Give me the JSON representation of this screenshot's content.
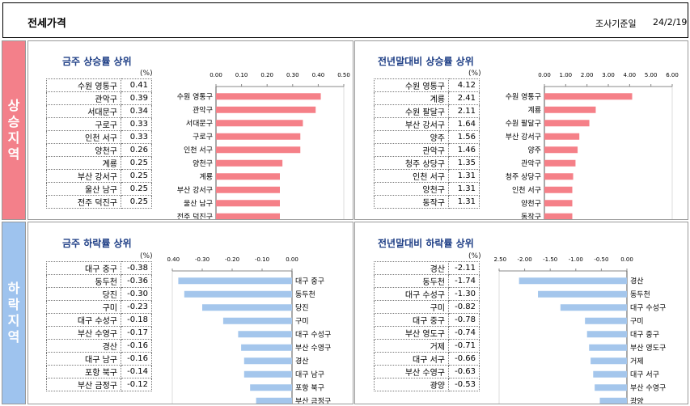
{
  "header": {
    "title": "전세가격",
    "ref_label": "조사기준일",
    "date": "24/2/19"
  },
  "side_labels": {
    "up": "상승지역",
    "down": "하락지역"
  },
  "panels": {
    "week_up": {
      "title": "금주 상승률 상위",
      "unit": "(%)",
      "rows": [
        {
          "name": "수원 영통구",
          "value": "0.41"
        },
        {
          "name": "관악구",
          "value": "0.39"
        },
        {
          "name": "서대문구",
          "value": "0.34"
        },
        {
          "name": "구로구",
          "value": "0.33"
        },
        {
          "name": "인천 서구",
          "value": "0.33"
        },
        {
          "name": "양천구",
          "value": "0.26"
        },
        {
          "name": "계룡",
          "value": "0.25"
        },
        {
          "name": "부산 강서구",
          "value": "0.25"
        },
        {
          "name": "울산 남구",
          "value": "0.25"
        },
        {
          "name": "전주 덕진구",
          "value": "0.25"
        }
      ]
    },
    "year_up": {
      "title": "전년말대비 상승률 상위",
      "unit": "(%)",
      "rows": [
        {
          "name": "수원 영통구",
          "value": "4.12"
        },
        {
          "name": "계룡",
          "value": "2.41"
        },
        {
          "name": "수원 팔달구",
          "value": "2.11"
        },
        {
          "name": "부산 강서구",
          "value": "1.64"
        },
        {
          "name": "양주",
          "value": "1.56"
        },
        {
          "name": "관악구",
          "value": "1.46"
        },
        {
          "name": "청주 상당구",
          "value": "1.35"
        },
        {
          "name": "인천 서구",
          "value": "1.31"
        },
        {
          "name": "양천구",
          "value": "1.31"
        },
        {
          "name": "동작구",
          "value": "1.31"
        }
      ]
    },
    "week_down": {
      "title": "금주 하락률 상위",
      "unit": "(%)",
      "rows": [
        {
          "name": "대구 중구",
          "value": "-0.38"
        },
        {
          "name": "동두천",
          "value": "-0.36"
        },
        {
          "name": "당진",
          "value": "-0.30"
        },
        {
          "name": "구미",
          "value": "-0.23"
        },
        {
          "name": "대구 수성구",
          "value": "-0.18"
        },
        {
          "name": "부산 수영구",
          "value": "-0.17"
        },
        {
          "name": "경산",
          "value": "-0.16"
        },
        {
          "name": "대구 남구",
          "value": "-0.16"
        },
        {
          "name": "포항 북구",
          "value": "-0.14"
        },
        {
          "name": "부산 금정구",
          "value": "-0.12"
        }
      ]
    },
    "year_down": {
      "title": "전년말대비 하락률 상위",
      "unit": "(%)",
      "rows": [
        {
          "name": "경산",
          "value": "-2.11"
        },
        {
          "name": "동두천",
          "value": "-1.74"
        },
        {
          "name": "대구 수성구",
          "value": "-1.30"
        },
        {
          "name": "구미",
          "value": "-0.82"
        },
        {
          "name": "대구 중구",
          "value": "-0.78"
        },
        {
          "name": "부산 영도구",
          "value": "-0.74"
        },
        {
          "name": "거제",
          "value": "-0.71"
        },
        {
          "name": "대구 서구",
          "value": "-0.66"
        },
        {
          "name": "부산 수영구",
          "value": "-0.63"
        },
        {
          "name": "광양",
          "value": "-0.53"
        }
      ]
    }
  },
  "colors": {
    "up_bar": "#f58088",
    "down_bar": "#a4c6ec",
    "up_side": "#f3808a",
    "down_side": "#9ec3ee",
    "title_text": "#1f3f86"
  },
  "chart_data": [
    {
      "type": "bar",
      "orientation": "horizontal",
      "title": "금주 상승률 상위",
      "categories": [
        "수원 영통구",
        "관악구",
        "서대문구",
        "구로구",
        "인천 서구",
        "양천구",
        "계룡",
        "부산 강서구",
        "울산 남구",
        "전주 덕진구"
      ],
      "values": [
        0.41,
        0.39,
        0.34,
        0.33,
        0.33,
        0.26,
        0.25,
        0.25,
        0.25,
        0.25
      ],
      "xlim": [
        0,
        0.5
      ],
      "ticks": [
        "0.00",
        "0.10",
        "0.20",
        "0.30",
        "0.40",
        "0.50"
      ],
      "axis_position": "top",
      "category_side": "left",
      "grid": false
    },
    {
      "type": "bar",
      "orientation": "horizontal",
      "title": "전년말대비 상승률 상위",
      "categories": [
        "수원 영통구",
        "계룡",
        "수원 팔달구",
        "부산 강서구",
        "양주",
        "관악구",
        "청주 상당구",
        "인천 서구",
        "양천구",
        "동작구"
      ],
      "values": [
        4.12,
        2.41,
        2.11,
        1.64,
        1.56,
        1.46,
        1.35,
        1.31,
        1.31,
        1.31
      ],
      "xlim": [
        0,
        6
      ],
      "ticks": [
        "0.00",
        "1.00",
        "2.00",
        "3.00",
        "4.00",
        "5.00",
        "6.00"
      ],
      "axis_position": "top",
      "category_side": "left",
      "grid": false
    },
    {
      "type": "bar",
      "orientation": "horizontal",
      "title": "금주 하락률 상위",
      "categories": [
        "대구 중구",
        "동두천",
        "당진",
        "구미",
        "대구 수성구",
        "부산 수영구",
        "경산",
        "대구 남구",
        "포항 북구",
        "부산 금정구"
      ],
      "values": [
        -0.38,
        -0.36,
        -0.3,
        -0.23,
        -0.18,
        -0.17,
        -0.16,
        -0.16,
        -0.14,
        -0.12
      ],
      "xlim": [
        -0.4,
        0
      ],
      "ticks": [
        "-0.40",
        "-0.30",
        "-0.20",
        "-0.10",
        "0.00"
      ],
      "axis_position": "top",
      "category_side": "right",
      "grid": false
    },
    {
      "type": "bar",
      "orientation": "horizontal",
      "title": "전년말대비 하락률 상위",
      "categories": [
        "경산",
        "동두천",
        "대구 수성구",
        "구미",
        "대구 중구",
        "부산 영도구",
        "거제",
        "대구 서구",
        "부산 수영구",
        "광양"
      ],
      "values": [
        -2.11,
        -1.74,
        -1.3,
        -0.82,
        -0.78,
        -0.74,
        -0.71,
        -0.66,
        -0.63,
        -0.53
      ],
      "xlim": [
        -2.5,
        0
      ],
      "ticks": [
        "-2.50",
        "-2.00",
        "-1.50",
        "-1.00",
        "-0.50",
        "0.00"
      ],
      "axis_position": "top",
      "category_side": "right",
      "grid": false
    }
  ]
}
